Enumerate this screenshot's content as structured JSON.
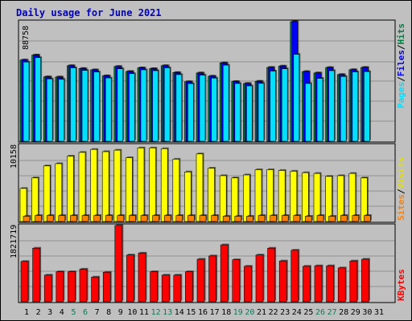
{
  "title": "Daily usage for June 2021",
  "colors": {
    "hits": "#008040",
    "files": "#0000ff",
    "pages": "#00e0ff",
    "visits": "#ffff00",
    "sites": "#ff8000",
    "kbytes": "#ff0000",
    "weekend": "#00805c",
    "weekday": "#000000",
    "title": "#0000c0"
  },
  "chart_data": [
    {
      "type": "bar",
      "title": "Daily usage for June 2021",
      "panel": "hits-files-pages",
      "ymax_label": "88758",
      "ylim": [
        0,
        88758
      ],
      "legend": [
        "Pages",
        "/",
        "Files",
        "/",
        "Hits"
      ],
      "categories": [
        "1",
        "2",
        "3",
        "4",
        "5",
        "6",
        "7",
        "8",
        "9",
        "10",
        "11",
        "12",
        "13",
        "14",
        "15",
        "16",
        "17",
        "18",
        "19",
        "20",
        "21",
        "22",
        "23",
        "24",
        "25",
        "26",
        "27",
        "28",
        "29",
        "30",
        "31"
      ],
      "series": [
        {
          "name": "Hits",
          "values": [
            60300,
            64000,
            47800,
            47700,
            56100,
            54000,
            53000,
            48600,
            55500,
            51800,
            54500,
            53900,
            56100,
            51000,
            44200,
            50700,
            48300,
            58200,
            44300,
            42900,
            44500,
            54800,
            55800,
            88758,
            51700,
            50700,
            54700,
            49500,
            53100,
            54800,
            0
          ]
        },
        {
          "name": "Files",
          "values": [
            60300,
            64000,
            47800,
            47700,
            56100,
            54000,
            53000,
            48600,
            55500,
            51800,
            54500,
            53900,
            56100,
            51000,
            44200,
            50700,
            48300,
            58200,
            44300,
            42900,
            44500,
            54800,
            55800,
            88758,
            51700,
            50700,
            54700,
            49500,
            53100,
            54800,
            0
          ]
        },
        {
          "name": "Pages",
          "values": [
            58800,
            62100,
            46300,
            46000,
            54500,
            52600,
            51400,
            47000,
            53800,
            50200,
            53000,
            52400,
            54500,
            49500,
            42800,
            49100,
            46900,
            56500,
            42900,
            41100,
            43000,
            52100,
            53800,
            64500,
            42900,
            46700,
            52400,
            48100,
            51500,
            51700,
            0
          ]
        }
      ]
    },
    {
      "type": "bar",
      "panel": "visits-sites",
      "ymax_label": "10158",
      "ylim": [
        0,
        10158
      ],
      "legend": [
        "Sites",
        "/",
        "Visits"
      ],
      "categories": [
        "1",
        "2",
        "3",
        "4",
        "5",
        "6",
        "7",
        "8",
        "9",
        "10",
        "11",
        "12",
        "13",
        "14",
        "15",
        "16",
        "17",
        "18",
        "19",
        "20",
        "21",
        "22",
        "23",
        "24",
        "25",
        "26",
        "27",
        "28",
        "29",
        "30",
        "31"
      ],
      "series": [
        {
          "name": "Visits",
          "values": [
            4400,
            5800,
            7400,
            7700,
            8700,
            9200,
            9600,
            9300,
            9500,
            8500,
            9800,
            9800,
            9700,
            8300,
            6600,
            9000,
            7100,
            6100,
            5800,
            6200,
            6900,
            6900,
            6800,
            6700,
            6500,
            6400,
            6000,
            6100,
            6400,
            5800,
            0
          ]
        },
        {
          "name": "Sites",
          "values": [
            700,
            800,
            800,
            800,
            800,
            800,
            800,
            800,
            800,
            800,
            800,
            800,
            800,
            800,
            800,
            800,
            800,
            700,
            700,
            700,
            800,
            800,
            800,
            800,
            700,
            800,
            700,
            800,
            800,
            800,
            0
          ]
        }
      ]
    },
    {
      "type": "bar",
      "panel": "kbytes",
      "ymax_label": "1821719",
      "ylim": [
        0,
        1821719
      ],
      "legend": [
        "KBytes"
      ],
      "categories": [
        "1",
        "2",
        "3",
        "4",
        "5",
        "6",
        "7",
        "8",
        "9",
        "10",
        "11",
        "12",
        "13",
        "14",
        "15",
        "16",
        "17",
        "18",
        "19",
        "20",
        "21",
        "22",
        "23",
        "24",
        "25",
        "26",
        "27",
        "28",
        "29",
        "30",
        "31"
      ],
      "series": [
        {
          "name": "KBytes",
          "values": [
            962000,
            1280000,
            636000,
            716000,
            716000,
            779000,
            590000,
            705000,
            1821719,
            1117000,
            1163000,
            716000,
            636000,
            636000,
            716000,
            1016000,
            1095000,
            1359000,
            1004000,
            847000,
            1117000,
            1280000,
            974000,
            1231000,
            847000,
            859000,
            859000,
            808000,
            974000,
            1016000,
            0
          ]
        }
      ]
    }
  ],
  "days": [
    {
      "label": "1",
      "weekend": false
    },
    {
      "label": "2",
      "weekend": false
    },
    {
      "label": "3",
      "weekend": false
    },
    {
      "label": "4",
      "weekend": false
    },
    {
      "label": "5",
      "weekend": true
    },
    {
      "label": "6",
      "weekend": true
    },
    {
      "label": "7",
      "weekend": false
    },
    {
      "label": "8",
      "weekend": false
    },
    {
      "label": "9",
      "weekend": false
    },
    {
      "label": "10",
      "weekend": false
    },
    {
      "label": "11",
      "weekend": false
    },
    {
      "label": "12",
      "weekend": true
    },
    {
      "label": "13",
      "weekend": true
    },
    {
      "label": "14",
      "weekend": false
    },
    {
      "label": "15",
      "weekend": false
    },
    {
      "label": "16",
      "weekend": false
    },
    {
      "label": "17",
      "weekend": false
    },
    {
      "label": "18",
      "weekend": false
    },
    {
      "label": "19",
      "weekend": true
    },
    {
      "label": "20",
      "weekend": true
    },
    {
      "label": "21",
      "weekend": false
    },
    {
      "label": "22",
      "weekend": false
    },
    {
      "label": "23",
      "weekend": false
    },
    {
      "label": "24",
      "weekend": false
    },
    {
      "label": "25",
      "weekend": false
    },
    {
      "label": "26",
      "weekend": true
    },
    {
      "label": "27",
      "weekend": true
    },
    {
      "label": "28",
      "weekend": false
    },
    {
      "label": "29",
      "weekend": false
    },
    {
      "label": "30",
      "weekend": false
    },
    {
      "label": "31",
      "weekend": false
    }
  ]
}
